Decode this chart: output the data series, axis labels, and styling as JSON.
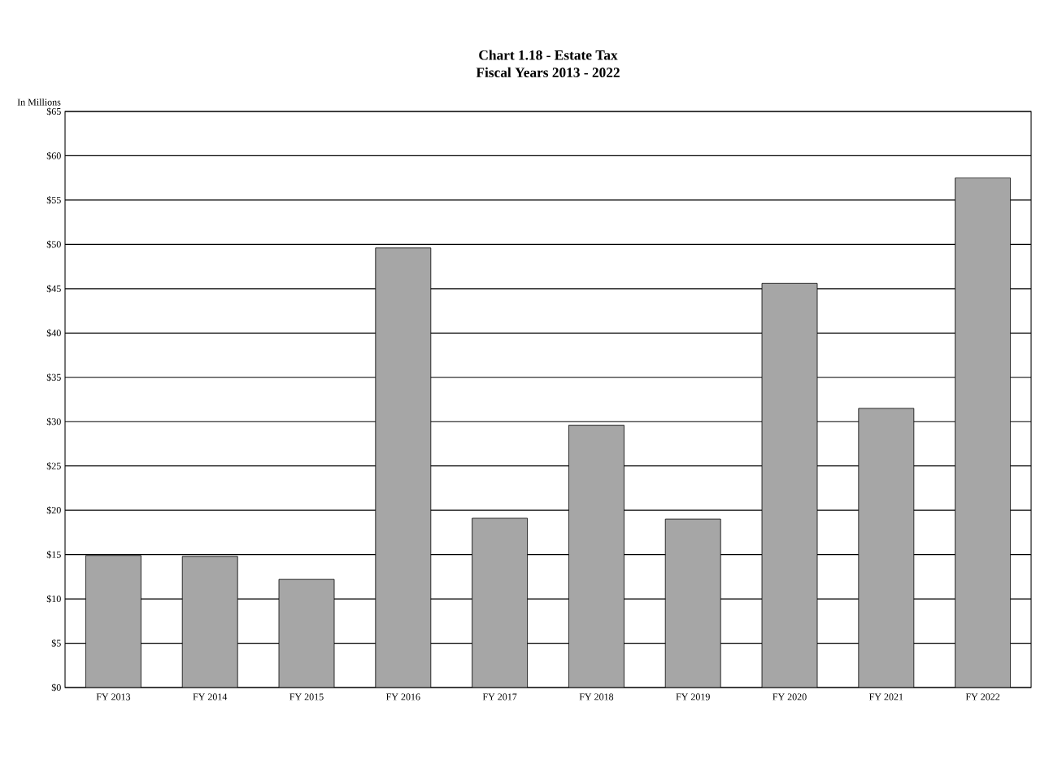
{
  "chart_data": {
    "type": "bar",
    "title": "Chart 1.18 - Estate Tax",
    "subtitle": "Fiscal Years 2013 - 2022",
    "ylabel": "In Millions",
    "categories": [
      "FY 2013",
      "FY 2014",
      "FY 2015",
      "FY 2016",
      "FY 2017",
      "FY 2018",
      "FY 2019",
      "FY 2020",
      "FY 2021",
      "FY 2022"
    ],
    "values": [
      14.9,
      14.8,
      12.2,
      49.6,
      19.1,
      29.6,
      19.0,
      45.6,
      31.5,
      57.5
    ],
    "color": "#a6a6a6",
    "ylim": [
      0,
      65
    ],
    "yticks": [
      {
        "value": 0,
        "label": "$0"
      },
      {
        "value": 5,
        "label": "$5"
      },
      {
        "value": 10,
        "label": "$10"
      },
      {
        "value": 15,
        "label": "$15"
      },
      {
        "value": 20,
        "label": "$20"
      },
      {
        "value": 25,
        "label": "$25"
      },
      {
        "value": 30,
        "label": "$30"
      },
      {
        "value": 35,
        "label": "$35"
      },
      {
        "value": 40,
        "label": "$40"
      },
      {
        "value": 45,
        "label": "$45"
      },
      {
        "value": 50,
        "label": "$50"
      },
      {
        "value": 55,
        "label": "$55"
      },
      {
        "value": 60,
        "label": "$60"
      },
      {
        "value": 65,
        "label": "$65"
      }
    ],
    "grid": "y",
    "legend": false
  }
}
